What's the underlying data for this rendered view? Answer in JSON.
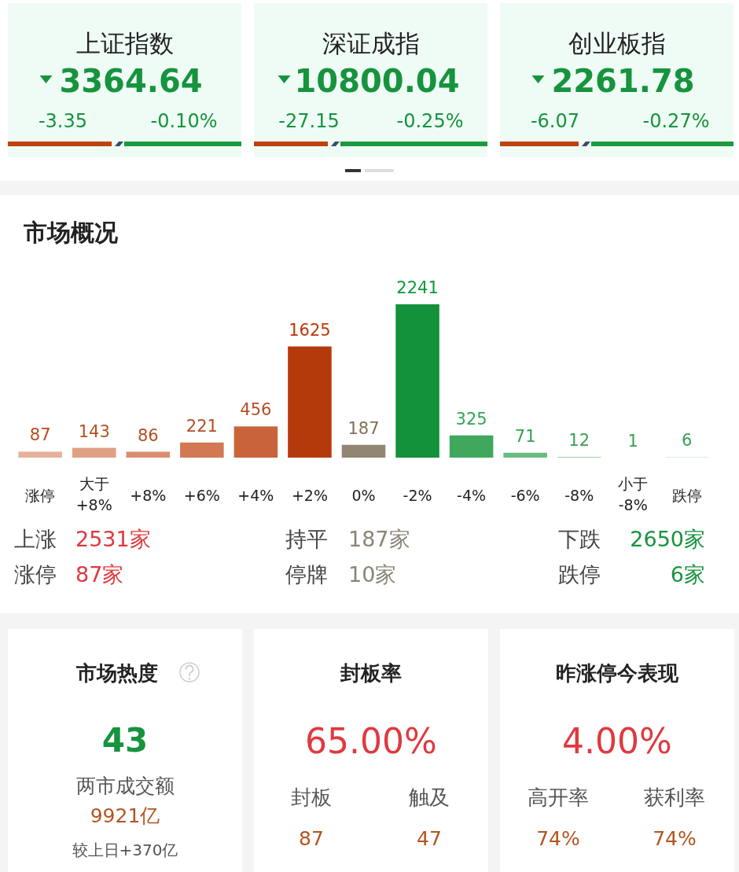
{
  "chart_data": [
    {
      "type": "other",
      "annotations": [
        "上证指数",
        "3364.64",
        "-3.35",
        "-0.10%",
        "深证成指",
        "10800.04",
        "-27.15",
        "-0.25%",
        "创业板指",
        "2261.78",
        "-6.07",
        "-0.27%"
      ]
    },
    {
      "type": "bar",
      "title": "市场概况",
      "categories": [
        "涨停",
        "大于 +8%",
        "+8%",
        "+6%",
        "+4%",
        "+2%",
        "0%",
        "-2%",
        "-4%",
        "-6%",
        "-8%",
        "小于 -8%",
        "跌停"
      ],
      "values": [
        87,
        143,
        86,
        221,
        456,
        1625,
        187,
        2241,
        325,
        71,
        12,
        1,
        6
      ],
      "colors": [
        "#e6b19c",
        "#dfa083",
        "#d98f6f",
        "#d27853",
        "#c9643a",
        "#b53a0b",
        "#918573",
        "#13913b",
        "#3fa85c",
        "#66bd7e",
        "#9fd4ad",
        "#c9e8d2",
        "#b8e0c4"
      ],
      "data_labels": true,
      "annotations": [
        "上涨",
        "2531家",
        "持平",
        "187家",
        "下跌",
        "2650家",
        "涨停",
        "87家",
        "停牌",
        "10家",
        "跌停",
        "6家"
      ]
    },
    {
      "type": "other",
      "annotations": [
        "市场热度",
        "43",
        "两市成交额",
        "9921亿",
        "较上日+370亿",
        "封板率",
        "65.00%",
        "封板",
        "触及",
        "87",
        "47",
        "昨涨停今表现",
        "4.00%",
        "高开率",
        "获利率",
        "74%",
        "74%"
      ]
    }
  ]
}
